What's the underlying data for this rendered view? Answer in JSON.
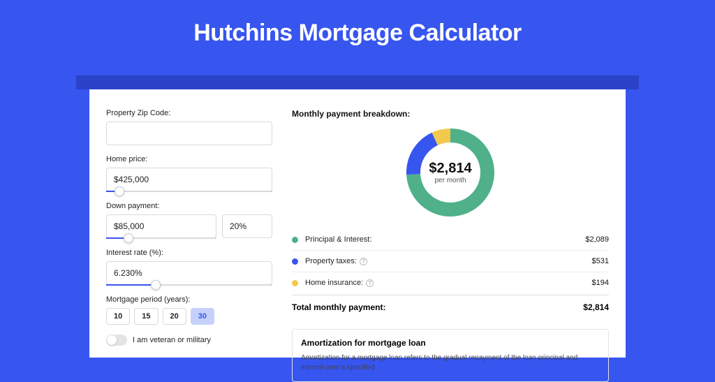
{
  "page": {
    "title": "Hutchins Mortgage Calculator"
  },
  "colors": {
    "bg": "#3755ef",
    "shadow": "#2a43c8",
    "card": "#ffffff",
    "accent": "#3755ef",
    "series_pi": "#4fb08a",
    "series_tax": "#3755ef",
    "series_ins": "#f2c94c"
  },
  "form": {
    "zip": {
      "label": "Property Zip Code:",
      "value": ""
    },
    "price": {
      "label": "Home price:",
      "value": "$425,000",
      "slider_pct": 8
    },
    "down": {
      "label": "Down payment:",
      "amount": "$85,000",
      "pct": "20%",
      "slider_pct": 20
    },
    "rate": {
      "label": "Interest rate (%):",
      "value": "6.230%",
      "slider_pct": 30
    },
    "period": {
      "label": "Mortgage period (years):",
      "options": [
        "10",
        "15",
        "20",
        "30"
      ],
      "selected": "30"
    },
    "veteran": {
      "label": "I am veteran or military",
      "on": false
    }
  },
  "breakdown": {
    "title": "Monthly payment breakdown:",
    "donut": {
      "amount": "$2,814",
      "sub": "per month",
      "size": 126,
      "thickness": 20,
      "slices": [
        {
          "color": "#4fb08a",
          "pct": 74.2
        },
        {
          "color": "#3755ef",
          "pct": 18.9
        },
        {
          "color": "#f2c94c",
          "pct": 6.9
        }
      ]
    },
    "items": [
      {
        "dot": "#4fb08a",
        "label": "Principal & Interest:",
        "help": false,
        "value": "$2,089"
      },
      {
        "dot": "#3755ef",
        "label": "Property taxes:",
        "help": true,
        "value": "$531"
      },
      {
        "dot": "#f2c94c",
        "label": "Home insurance:",
        "help": true,
        "value": "$194"
      }
    ],
    "total": {
      "label": "Total monthly payment:",
      "value": "$2,814"
    }
  },
  "amort": {
    "title": "Amortization for mortgage loan",
    "text": "Amortization for a mortgage loan refers to the gradual repayment of the loan principal and interest over a specified"
  }
}
